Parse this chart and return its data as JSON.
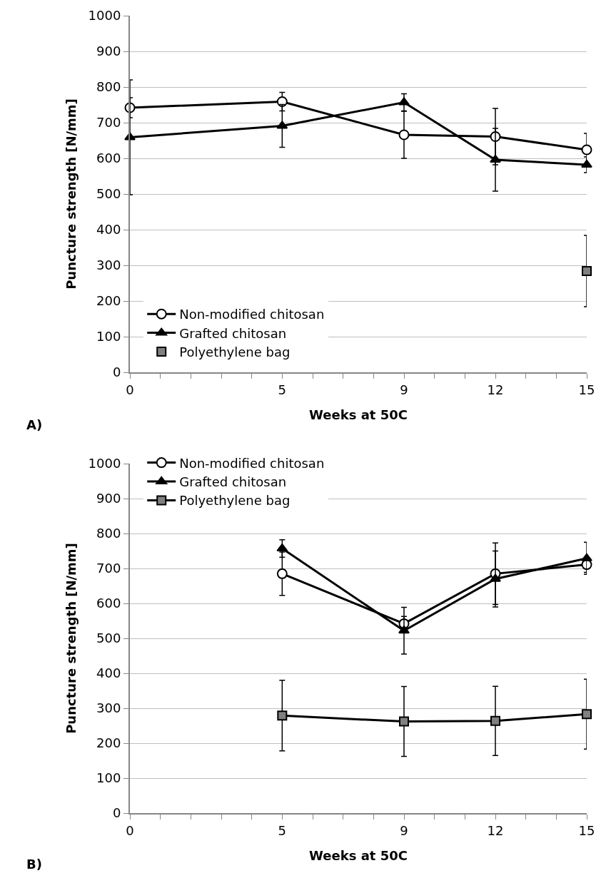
{
  "chart_data": [
    {
      "type": "line",
      "xlabel": "Weeks at 50C",
      "ylabel": "Puncture strength [N/mm]",
      "annotations": [
        "A)"
      ],
      "xlim": [
        0,
        15
      ],
      "xticks": [
        0,
        {
          "value": 1,
          "label": null
        },
        {
          "value": 2,
          "label": null
        },
        {
          "value": 3,
          "label": null
        },
        {
          "value": 4,
          "label": null
        },
        5,
        {
          "value": 6,
          "label": null
        },
        {
          "value": 7,
          "label": null
        },
        {
          "value": 8,
          "label": null
        },
        9,
        {
          "value": 10,
          "label": null
        },
        {
          "value": 11,
          "label": null
        },
        12,
        {
          "value": 13,
          "label": null
        },
        {
          "value": 14,
          "label": null
        },
        15
      ],
      "ylim": [
        0,
        1000
      ],
      "yticks": [
        0,
        100,
        200,
        300,
        400,
        500,
        600,
        700,
        800,
        900,
        1000
      ],
      "grid": "y",
      "legend": "bottom left",
      "line_style": "solid",
      "series": [
        {
          "name": "Non-modified chitosan",
          "color": "#000000",
          "marker": "circle",
          "x": [
            0,
            5,
            9,
            12,
            15
          ],
          "values": [
            742,
            759,
            666,
            661,
            624
          ],
          "errors": [
            28,
            26,
            66,
            79,
            46
          ]
        },
        {
          "name": "Grafted chitosan",
          "color": "#000000",
          "marker": "triangle",
          "x": [
            0,
            5,
            9,
            12,
            15
          ],
          "values": [
            659,
            691,
            757,
            596,
            582
          ],
          "errors": [
            161,
            60,
            24,
            88,
            22
          ]
        },
        {
          "name": "Polyethylene bag",
          "type": "scatter",
          "color": "#808080",
          "marker": "square",
          "x": [
            15
          ],
          "values": [
            284
          ],
          "errors": [
            100
          ]
        }
      ]
    },
    {
      "type": "line",
      "xlabel": "Weeks at 50C",
      "ylabel": "Puncture strength [N/mm]",
      "annotations": [
        "B)"
      ],
      "xlim": [
        0,
        15
      ],
      "xticks": [
        0,
        {
          "value": 1,
          "label": null
        },
        {
          "value": 2,
          "label": null
        },
        {
          "value": 3,
          "label": null
        },
        {
          "value": 4,
          "label": null
        },
        5,
        {
          "value": 6,
          "label": null
        },
        {
          "value": 7,
          "label": null
        },
        {
          "value": 8,
          "label": null
        },
        9,
        {
          "value": 10,
          "label": null
        },
        {
          "value": 11,
          "label": null
        },
        12,
        {
          "value": 13,
          "label": null
        },
        {
          "value": 14,
          "label": null
        },
        15
      ],
      "ylim": [
        0,
        1000
      ],
      "yticks": [
        0,
        100,
        200,
        300,
        400,
        500,
        600,
        700,
        800,
        900,
        1000
      ],
      "grid": "y",
      "legend": "top left",
      "line_style": "solid",
      "series": [
        {
          "name": "Non-modified chitosan",
          "color": "#000000",
          "marker": "circle",
          "x": [
            5,
            9,
            12,
            15
          ],
          "values": [
            685,
            542,
            685,
            711
          ],
          "errors": [
            62,
            21,
            88,
            22
          ]
        },
        {
          "name": "Grafted chitosan",
          "color": "#000000",
          "marker": "triangle",
          "x": [
            5,
            9,
            12,
            15
          ],
          "values": [
            757,
            522,
            670,
            729
          ],
          "errors": [
            25,
            67,
            80,
            46
          ]
        },
        {
          "name": "Polyethylene bag",
          "color": "#808080",
          "marker": "square",
          "x": [
            5,
            9,
            12,
            15
          ],
          "values": [
            279,
            262,
            264,
            283
          ],
          "errors": [
            101,
            100,
            99,
            100
          ]
        }
      ]
    }
  ]
}
